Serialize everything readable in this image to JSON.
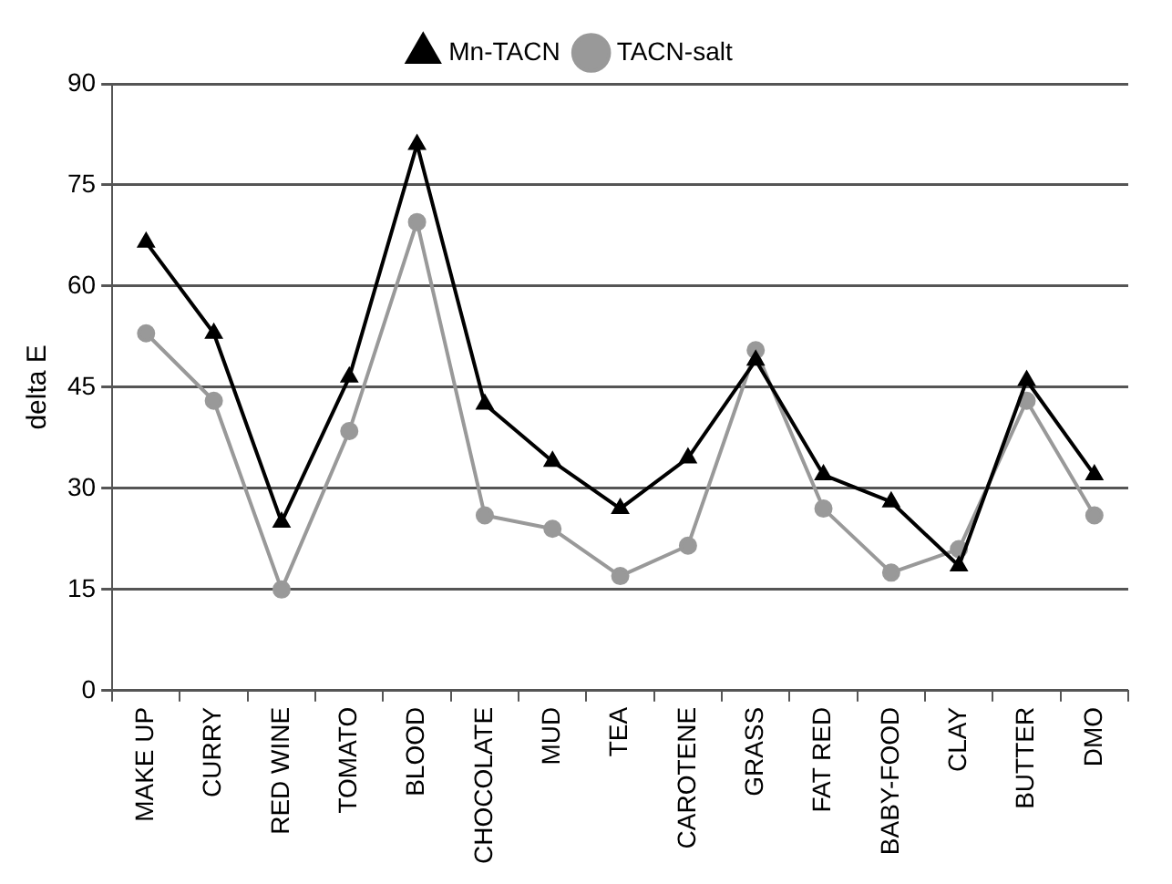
{
  "chart_data": {
    "type": "line",
    "ylabel": "delta E",
    "categories": [
      "MAKE UP",
      "CURRY",
      "RED WINE",
      "TOMATO",
      "BLOOD",
      "CHOCOLATE",
      "MUD",
      "TEA",
      "CAROTENE",
      "GRASS",
      "FAT RED",
      "BABY-FOOD",
      "CLAY",
      "BUTTER",
      "DMO"
    ],
    "series": [
      {
        "name": "Mn-TACN",
        "color": "#000000",
        "marker": "triangle",
        "values": [
          66.5,
          53,
          25,
          46.5,
          81,
          42.5,
          34,
          27,
          34.5,
          49,
          32,
          28,
          18.5,
          46,
          32
        ]
      },
      {
        "name": "TACN-salt",
        "color": "#999999",
        "marker": "circle",
        "values": [
          53,
          43,
          15,
          38.5,
          69.5,
          26,
          24,
          17,
          21.5,
          50.5,
          27,
          17.5,
          21,
          43,
          26
        ]
      }
    ],
    "ylim": [
      0,
      90
    ],
    "yticks": [
      0,
      15,
      30,
      45,
      60,
      75,
      90
    ],
    "grid": "y",
    "legend": "top",
    "line_style": "solid"
  }
}
